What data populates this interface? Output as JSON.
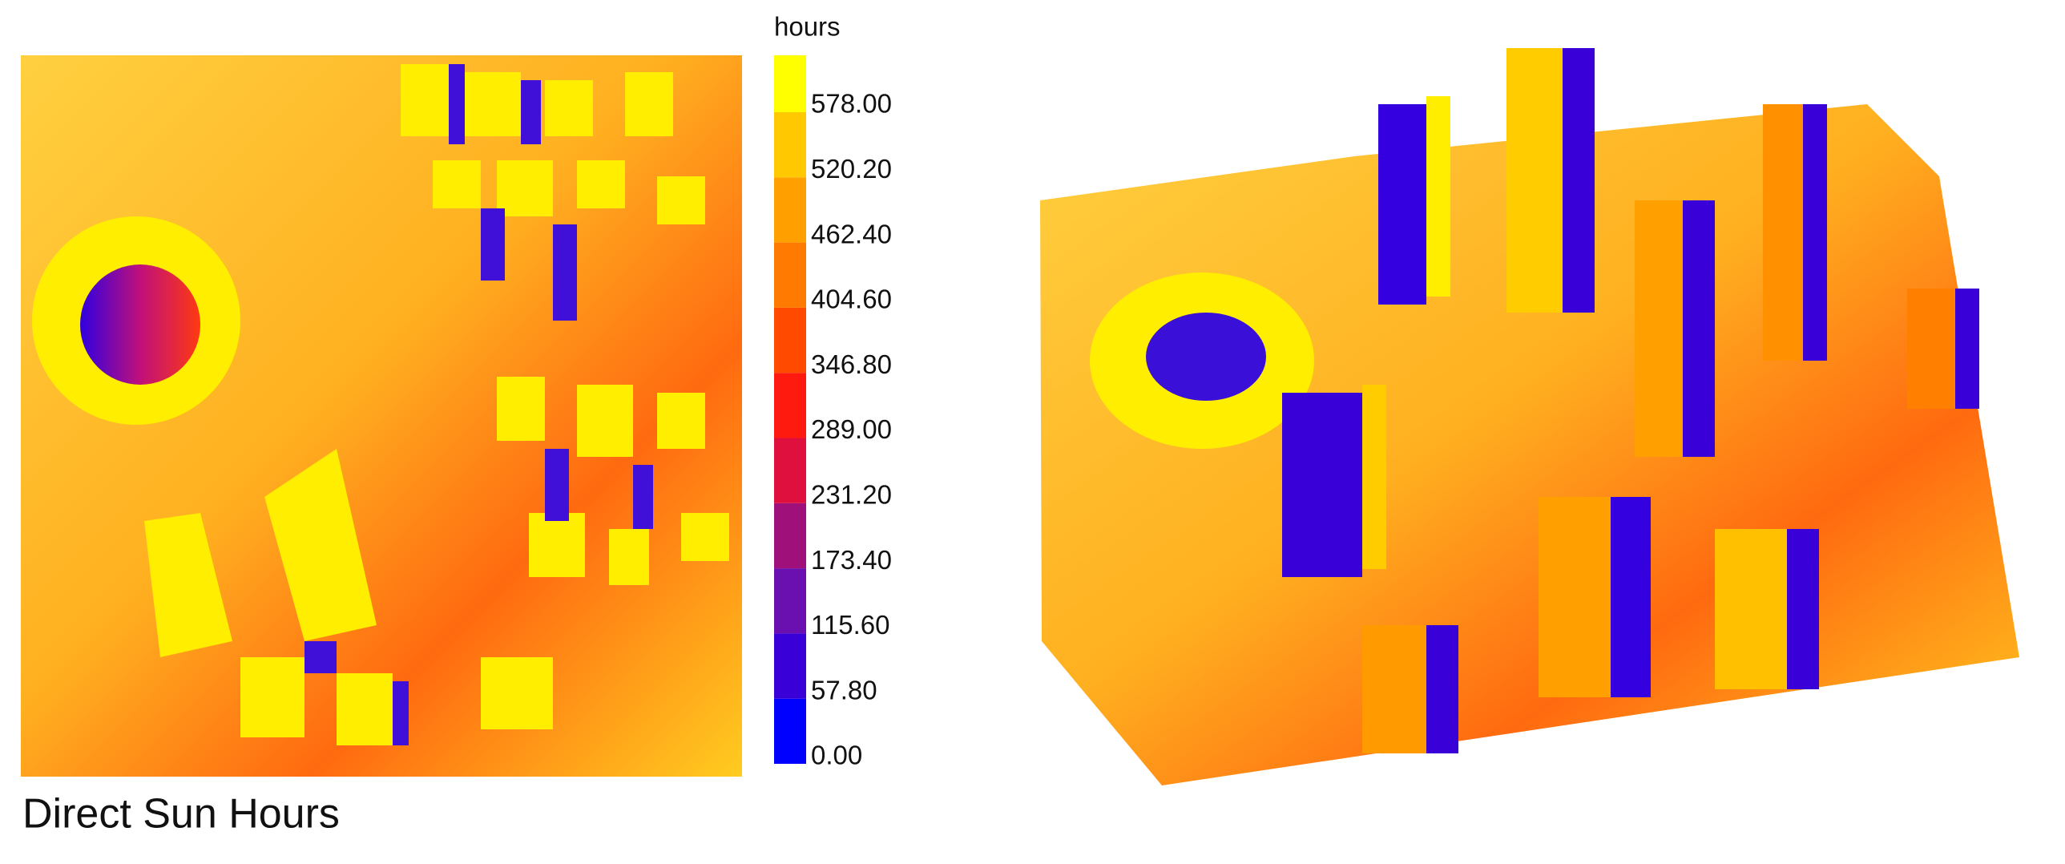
{
  "caption": "Direct Sun Hours",
  "legend": {
    "title": "hours",
    "ticks": [
      {
        "value": 0,
        "label": "0.00"
      },
      {
        "value": 57.8,
        "label": "57.80"
      },
      {
        "value": 115.6,
        "label": "115.60"
      },
      {
        "value": 173.4,
        "label": "173.40"
      },
      {
        "value": 231.2,
        "label": "231.20"
      },
      {
        "value": 289,
        "label": "289.00"
      },
      {
        "value": 346.8,
        "label": "346.80"
      },
      {
        "value": 404.6,
        "label": "404.60"
      },
      {
        "value": 462.4,
        "label": "462.40"
      },
      {
        "value": 520.2,
        "label": "520.20"
      },
      {
        "value": 578,
        "label": "578.00"
      }
    ],
    "colors": [
      "#0000ff",
      "#3a00d8",
      "#6a10b0",
      "#a0107a",
      "#e0103e",
      "#ff1a10",
      "#ff4a00",
      "#ff7a00",
      "#ffa000",
      "#ffc800",
      "#ffff00"
    ]
  }
}
